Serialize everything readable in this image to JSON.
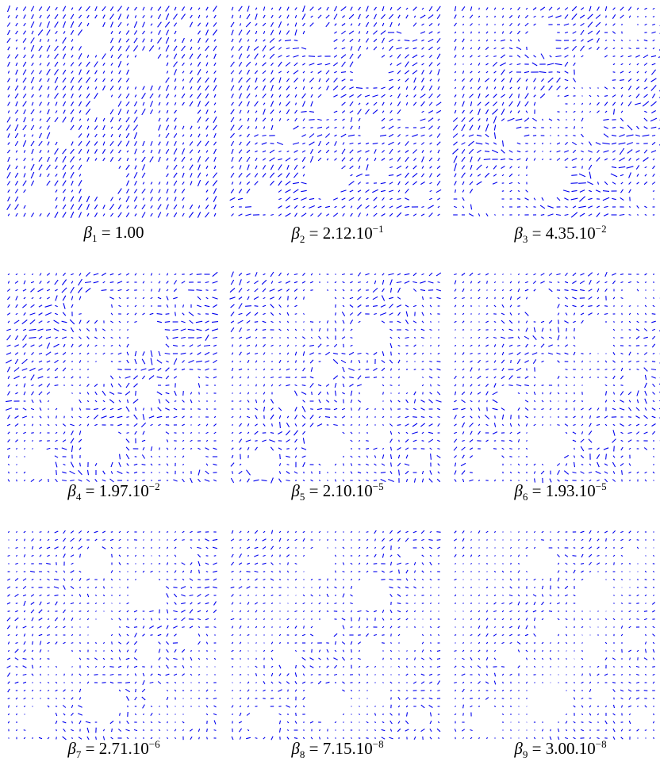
{
  "panels": [
    {
      "caption": {
        "symbol": "β",
        "index": "1",
        "relation": "=",
        "value": "1.00"
      }
    },
    {
      "caption": {
        "symbol": "β",
        "index": "2",
        "relation": "=",
        "value": "2.12.10",
        "exponent": "−1"
      }
    },
    {
      "caption": {
        "symbol": "β",
        "index": "3",
        "relation": "=",
        "value": "4.35.10",
        "exponent": "−2"
      }
    },
    {
      "caption": {
        "symbol": "β",
        "index": "4",
        "relation": "=",
        "value": "1.97.10",
        "exponent": "−2"
      }
    },
    {
      "caption": {
        "symbol": "β",
        "index": "5",
        "relation": "=",
        "value": "2.10.10",
        "exponent": "−5"
      }
    },
    {
      "caption": {
        "symbol": "β",
        "index": "6",
        "relation": "=",
        "value": "1.93.10",
        "exponent": "−5"
      }
    },
    {
      "caption": {
        "symbol": "β",
        "index": "7",
        "relation": "=",
        "value": "2.71.10",
        "exponent": "−6"
      }
    },
    {
      "caption": {
        "symbol": "β",
        "index": "8",
        "relation": "=",
        "value": "7.15.10",
        "exponent": "−8"
      }
    },
    {
      "caption": {
        "symbol": "β",
        "index": "9",
        "relation": "=",
        "value": "3.00.10",
        "exponent": "−8"
      }
    }
  ]
}
